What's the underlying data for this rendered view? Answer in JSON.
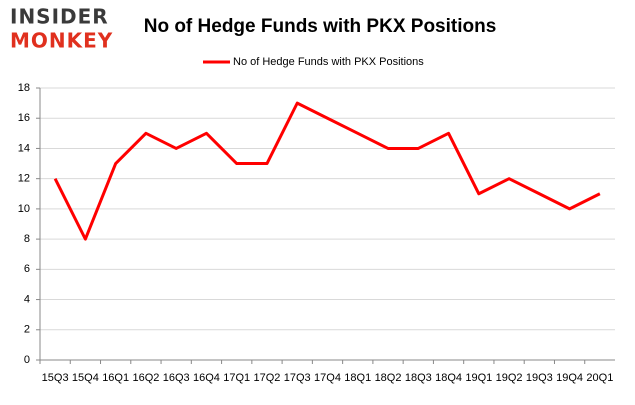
{
  "logo": {
    "line1": "INSIDER",
    "line2": "MONKEY"
  },
  "chart_data": {
    "type": "line",
    "title": "No of Hedge Funds with PKX Positions",
    "categories": [
      "15Q3",
      "15Q4",
      "16Q1",
      "16Q2",
      "16Q3",
      "16Q4",
      "17Q1",
      "17Q2",
      "17Q3",
      "17Q4",
      "18Q1",
      "18Q2",
      "18Q3",
      "18Q4",
      "19Q1",
      "19Q2",
      "19Q3",
      "19Q4",
      "20Q1"
    ],
    "series": [
      {
        "name": "No of Hedge Funds with PKX Positions",
        "color": "#ff0000",
        "values": [
          12,
          8,
          13,
          15,
          14,
          15,
          13,
          13,
          17,
          16,
          15,
          14,
          14,
          15,
          11,
          12,
          11,
          10,
          11
        ]
      }
    ],
    "ylim": [
      0,
      18
    ],
    "yticks": [
      0,
      2,
      4,
      6,
      8,
      10,
      12,
      14,
      16,
      18
    ],
    "grid": true,
    "legend": "top"
  }
}
